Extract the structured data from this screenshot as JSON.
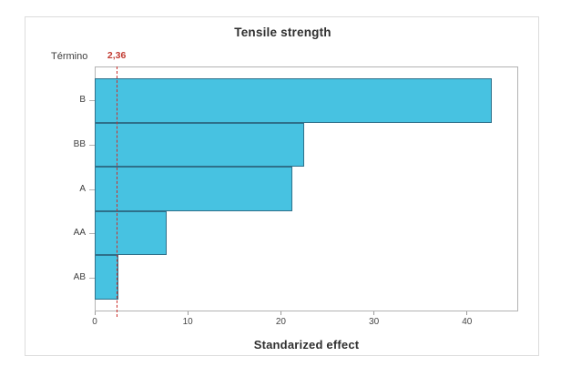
{
  "chart_data": {
    "type": "bar",
    "orientation": "horizontal",
    "title": "Tensile strength",
    "xlabel": "Standarized effect",
    "ylabel": "Término",
    "categories": [
      "B",
      "BB",
      "A",
      "AA",
      "AB"
    ],
    "values": [
      42.7,
      22.5,
      21.2,
      7.7,
      2.5
    ],
    "xticks": [
      0,
      10,
      20,
      30,
      40
    ],
    "xlim": [
      0,
      45.5
    ],
    "grid": false,
    "legend": null,
    "reference_line": {
      "value": 2.36,
      "label": "2,36"
    },
    "colors": {
      "bar_fill": "#47c2e1",
      "bar_border": "#2e708a",
      "reference_line": "#cc2f2b",
      "reference_label_text": "#c23b32",
      "frame_border": "#b3b3b3",
      "text": "#3d3d3d"
    }
  }
}
